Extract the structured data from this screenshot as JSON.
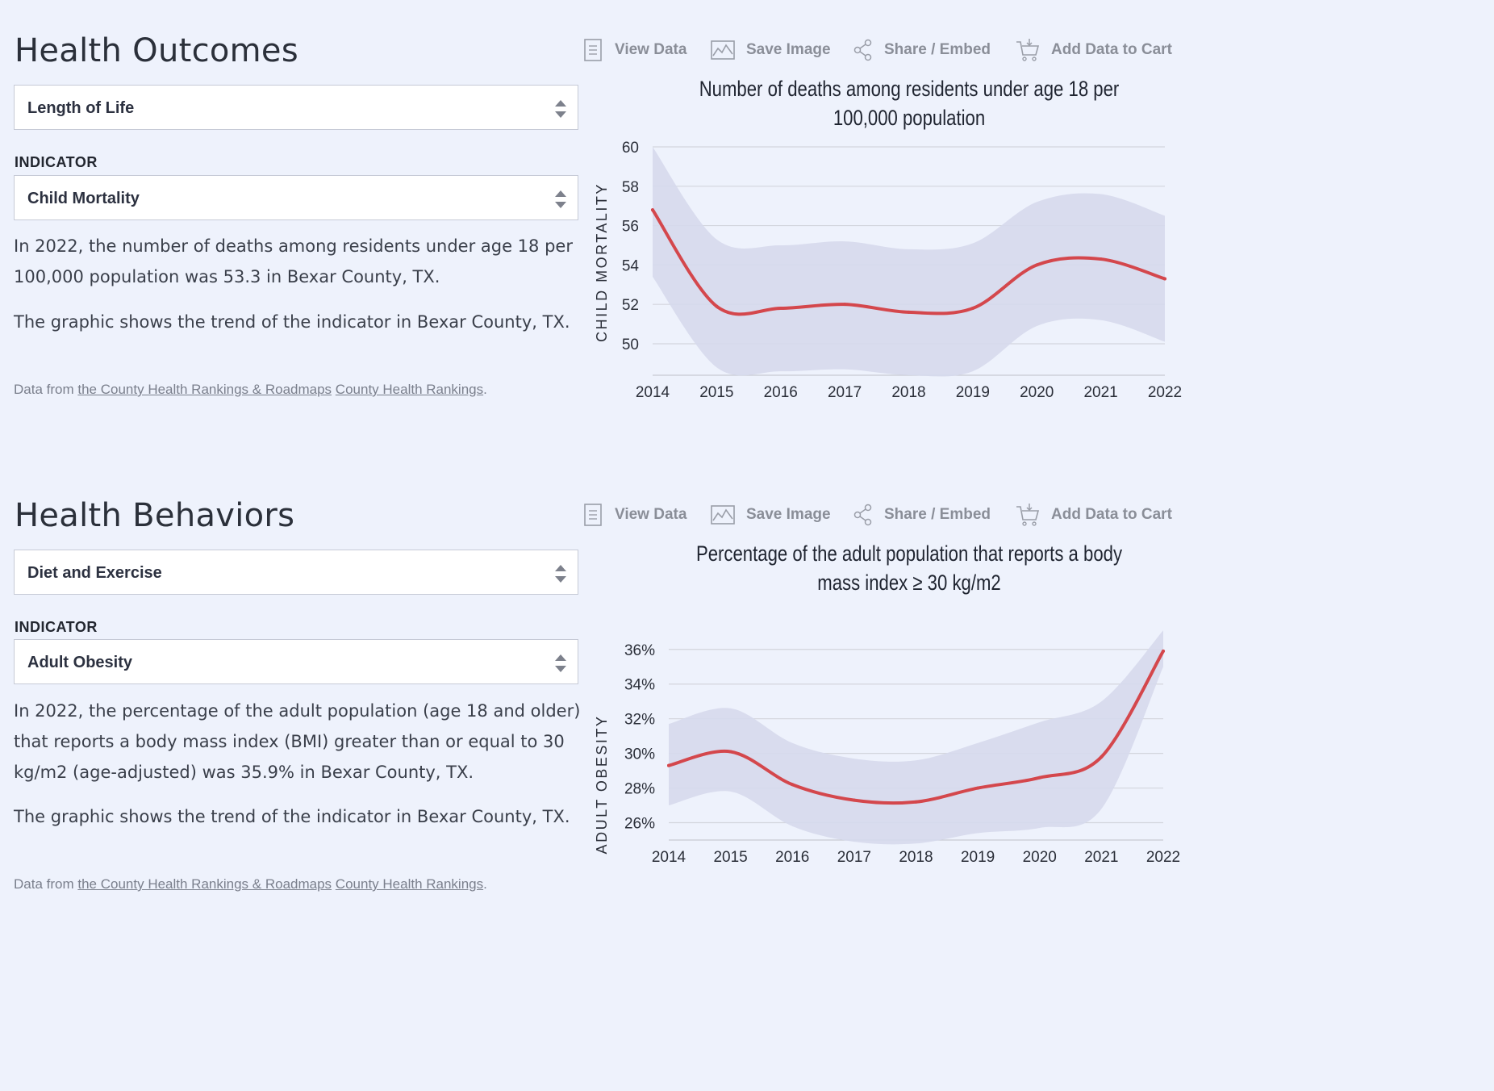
{
  "toolbar": {
    "view_data": "View Data",
    "save_image": "Save Image",
    "share_embed": "Share / Embed",
    "add_to_cart": "Add Data to Cart"
  },
  "sections": [
    {
      "title": "Health Outcomes",
      "category_value": "Length of Life",
      "indicator_label": "INDICATOR",
      "indicator_value": "Child Mortality",
      "description": "In 2022, the number of deaths among residents under age 18 per 100,000 population was 53.3 in Bexar County, TX.",
      "trend_text": "The graphic shows the trend of the indicator in Bexar County, TX.",
      "source_prefix": "Data from",
      "source_link_1": "the County Health Rankings & Roadmaps",
      "source_link_2": "County Health Rankings",
      "source_suffix": "."
    },
    {
      "title": "Health Behaviors",
      "category_value": "Diet and Exercise",
      "indicator_label": "INDICATOR",
      "indicator_value": "Adult Obesity",
      "description": "In 2022, the percentage of the adult population (age 18 and older) that reports a body mass index (BMI) greater than or equal to 30 kg/m2 (age-adjusted) was 35.9% in Bexar County, TX.",
      "trend_text": "The graphic shows the trend of the indicator in Bexar County, TX.",
      "source_prefix": "Data from",
      "source_link_1": "the County Health Rankings & Roadmaps",
      "source_link_2": "County Health Rankings",
      "source_suffix": "."
    }
  ],
  "colors": {
    "line": "#d4474c",
    "band": "#d6d9ec",
    "grid": "#d3d5dd",
    "background": "#eef2fc"
  },
  "chart_data": [
    {
      "type": "line",
      "title": "Number of deaths among residents under age 18 per 100,000 population",
      "ylabel": "CHILD MORTALITY",
      "xlabel": "",
      "x": [
        2014,
        2015,
        2016,
        2017,
        2018,
        2019,
        2020,
        2021,
        2022
      ],
      "series": [
        {
          "values": [
            56.8,
            51.9,
            51.8,
            52.0,
            51.6,
            51.8,
            54.0,
            54.3,
            53.3
          ],
          "lower": [
            53.4,
            48.8,
            48.6,
            48.7,
            48.4,
            48.6,
            50.9,
            51.2,
            50.1
          ],
          "upper": [
            60.0,
            55.3,
            55.0,
            55.2,
            54.8,
            55.1,
            57.2,
            57.6,
            56.5
          ]
        }
      ],
      "yticks": [
        50,
        52,
        54,
        56,
        58,
        60
      ],
      "ytick_labels": [
        "50",
        "52",
        "54",
        "56",
        "58",
        "60"
      ],
      "ylim": [
        48.4,
        60.0
      ],
      "grid": true
    },
    {
      "type": "line",
      "title": "Percentage of the adult population that reports a body mass index ≥ 30 kg/m2",
      "ylabel": "ADULT OBESITY",
      "xlabel": "",
      "x": [
        2014,
        2015,
        2016,
        2017,
        2018,
        2019,
        2020,
        2021,
        2022
      ],
      "series": [
        {
          "values": [
            29.3,
            30.1,
            28.2,
            27.3,
            27.2,
            28.0,
            28.6,
            29.8,
            35.9
          ],
          "lower": [
            27.0,
            27.8,
            25.8,
            24.9,
            24.8,
            25.4,
            25.7,
            26.8,
            35.0
          ],
          "upper": [
            31.7,
            32.6,
            30.6,
            29.7,
            29.6,
            30.6,
            31.8,
            33.0,
            37.1
          ]
        }
      ],
      "yticks": [
        26,
        28,
        30,
        32,
        34,
        36
      ],
      "ytick_labels": [
        "26%",
        "28%",
        "30%",
        "32%",
        "34%",
        "36%"
      ],
      "ylim": [
        25.0,
        37.2
      ],
      "grid": true
    }
  ]
}
